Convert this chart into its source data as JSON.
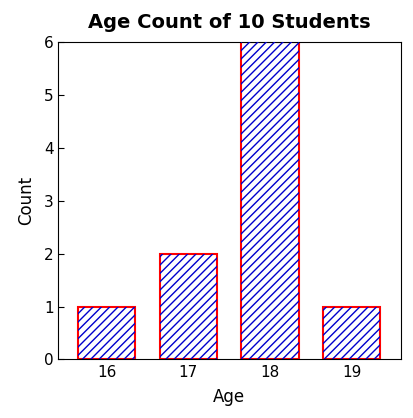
{
  "title": "Age Count of 10 Students",
  "xlabel": "Age",
  "ylabel": "Count",
  "categories": [
    16,
    17,
    18,
    19
  ],
  "values": [
    1,
    2,
    6,
    1
  ],
  "edge_color": "#FF0000",
  "hatch_color": "#0000CD",
  "hatch": "////",
  "ylim": [
    0,
    6
  ],
  "yticks": [
    0,
    1,
    2,
    3,
    4,
    5,
    6
  ],
  "background_color": "#FFFFFF",
  "title_fontsize": 14,
  "label_fontsize": 12,
  "tick_fontsize": 11,
  "bar_width": 0.7
}
